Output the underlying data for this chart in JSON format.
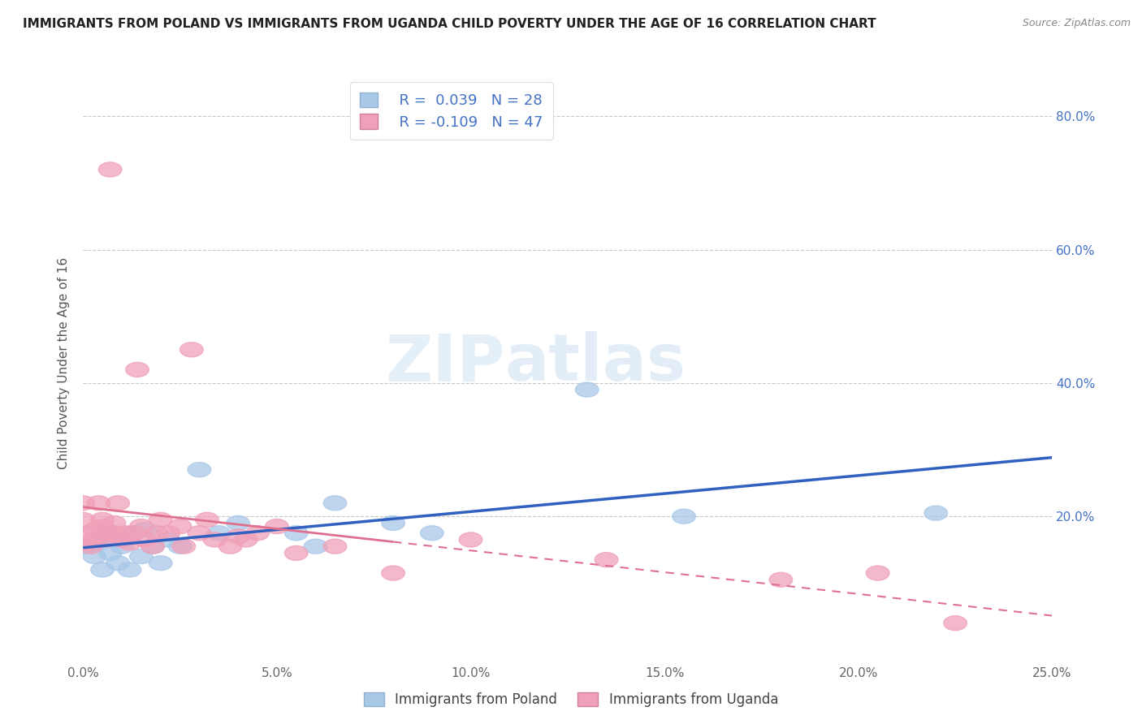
{
  "title": "IMMIGRANTS FROM POLAND VS IMMIGRANTS FROM UGANDA CHILD POVERTY UNDER THE AGE OF 16 CORRELATION CHART",
  "source": "Source: ZipAtlas.com",
  "ylabel": "Child Poverty Under the Age of 16",
  "xlim": [
    0.0,
    0.25
  ],
  "ylim": [
    -0.02,
    0.88
  ],
  "xtick_labels": [
    "0.0%",
    "",
    "5.0%",
    "",
    "10.0%",
    "",
    "15.0%",
    "",
    "20.0%",
    "",
    "25.0%"
  ],
  "xtick_vals": [
    0.0,
    0.025,
    0.05,
    0.075,
    0.1,
    0.125,
    0.15,
    0.175,
    0.2,
    0.225,
    0.25
  ],
  "xtick_show": [
    "0.0%",
    "5.0%",
    "10.0%",
    "15.0%",
    "20.0%",
    "25.0%"
  ],
  "xtick_show_vals": [
    0.0,
    0.05,
    0.1,
    0.15,
    0.2,
    0.25
  ],
  "ytick_labels": [
    "20.0%",
    "40.0%",
    "60.0%",
    "80.0%"
  ],
  "ytick_vals": [
    0.2,
    0.4,
    0.6,
    0.8
  ],
  "color_poland": "#a8c8e8",
  "color_uganda": "#f0a0b8",
  "line_color_poland": "#3060c0",
  "line_color_uganda": "#e07090",
  "poland_scatter_x": [
    0.001,
    0.003,
    0.004,
    0.005,
    0.006,
    0.007,
    0.008,
    0.009,
    0.01,
    0.012,
    0.013,
    0.015,
    0.016,
    0.018,
    0.02,
    0.022,
    0.025,
    0.03,
    0.035,
    0.04,
    0.055,
    0.06,
    0.065,
    0.08,
    0.09,
    0.13,
    0.155,
    0.22
  ],
  "poland_scatter_y": [
    0.155,
    0.14,
    0.16,
    0.12,
    0.175,
    0.145,
    0.165,
    0.13,
    0.155,
    0.12,
    0.175,
    0.14,
    0.18,
    0.155,
    0.13,
    0.165,
    0.155,
    0.27,
    0.175,
    0.19,
    0.175,
    0.155,
    0.22,
    0.19,
    0.175,
    0.39,
    0.2,
    0.205
  ],
  "uganda_scatter_x": [
    0.0,
    0.0,
    0.001,
    0.001,
    0.002,
    0.003,
    0.003,
    0.004,
    0.005,
    0.005,
    0.005,
    0.006,
    0.006,
    0.007,
    0.008,
    0.008,
    0.009,
    0.01,
    0.011,
    0.012,
    0.013,
    0.014,
    0.015,
    0.016,
    0.018,
    0.019,
    0.02,
    0.022,
    0.025,
    0.026,
    0.028,
    0.03,
    0.032,
    0.034,
    0.038,
    0.04,
    0.042,
    0.045,
    0.05,
    0.055,
    0.065,
    0.08,
    0.1,
    0.135,
    0.18,
    0.205,
    0.225
  ],
  "uganda_scatter_y": [
    0.195,
    0.22,
    0.16,
    0.175,
    0.155,
    0.165,
    0.18,
    0.22,
    0.195,
    0.185,
    0.175,
    0.165,
    0.175,
    0.72,
    0.19,
    0.175,
    0.22,
    0.165,
    0.175,
    0.16,
    0.175,
    0.42,
    0.185,
    0.165,
    0.155,
    0.175,
    0.195,
    0.175,
    0.185,
    0.155,
    0.45,
    0.175,
    0.195,
    0.165,
    0.155,
    0.17,
    0.165,
    0.175,
    0.185,
    0.145,
    0.155,
    0.115,
    0.165,
    0.135,
    0.105,
    0.115,
    0.04
  ],
  "background_color": "#ffffff",
  "plot_bg_color": "#ffffff",
  "grid_color": "#c8c8c8"
}
